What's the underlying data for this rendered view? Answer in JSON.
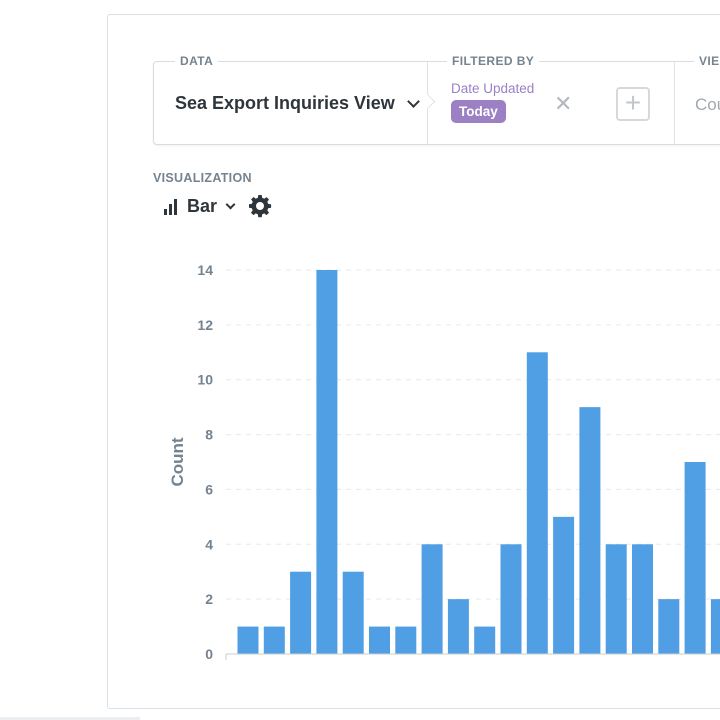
{
  "query": {
    "data_label": "DATA",
    "source": "Sea Export Inquiries View",
    "filtered_by_label": "FILTERED BY",
    "filter_field": "Date Updated",
    "filter_value": "Today",
    "view_label": "VIE",
    "view_value": "Cou"
  },
  "visualization": {
    "label": "VISUALIZATION",
    "type_label": "Bar",
    "icons": [
      "bar-chart-icon",
      "chevron-down-icon",
      "gear-icon"
    ]
  },
  "chart_data": {
    "type": "bar",
    "ylabel": "Count",
    "xlabel": "",
    "ylim": [
      0,
      14
    ],
    "yticks": [
      0,
      2,
      4,
      6,
      8,
      10,
      12,
      14
    ],
    "values": [
      1,
      1,
      3,
      14,
      3,
      1,
      1,
      4,
      2,
      1,
      4,
      11,
      5,
      9,
      4,
      4,
      2,
      7,
      2
    ],
    "color": "#509ee3",
    "grid": true
  },
  "colors": {
    "filter_purple": "#9b80c4",
    "bar_blue": "#509ee3",
    "label_gray": "#74838f"
  }
}
